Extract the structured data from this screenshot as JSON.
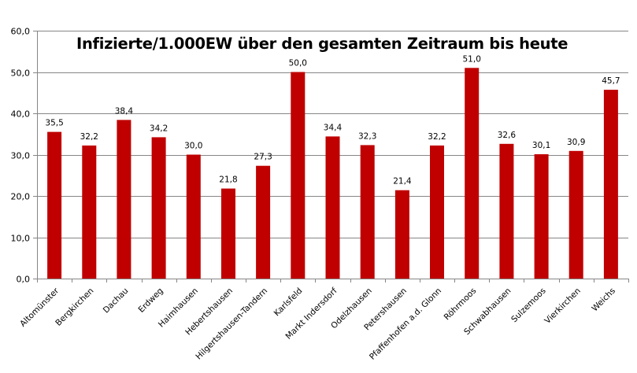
{
  "chart_data": {
    "type": "bar",
    "title": "Infizierte/1.000EW über den gesamten Zeitraum bis heute",
    "xlabel": "",
    "ylabel": "",
    "ylim": [
      0,
      60
    ],
    "yticks": [
      "0,0",
      "10,0",
      "20,0",
      "30,0",
      "40,0",
      "50,0",
      "60,0"
    ],
    "grid": true,
    "legend": "none",
    "bar_color": "#C00000",
    "categories": [
      "Altomünster",
      "Bergkirchen",
      "Dachau",
      "Erdweg",
      "Haimhausen",
      "Hebertshausen",
      "Hilgertshausen-Tandern",
      "Karlsfeld",
      "Markt Indersdorf",
      "Odelzhausen",
      "Petershausen",
      "Pfaffenhofen a.d. Glonn",
      "Röhrmoos",
      "Schwabhausen",
      "Sulzemoos",
      "Vierkirchen",
      "Weichs"
    ],
    "values": [
      35.5,
      32.2,
      38.4,
      34.2,
      30.0,
      21.8,
      27.3,
      50.0,
      34.4,
      32.3,
      21.4,
      32.2,
      51.0,
      32.6,
      30.1,
      30.9,
      45.7
    ],
    "data_labels": [
      "35,5",
      "32,2",
      "38,4",
      "34,2",
      "30,0",
      "21,8",
      "27,3",
      "50,0",
      "34,4",
      "32,3",
      "21,4",
      "32,2",
      "51,0",
      "32,6",
      "30,1",
      "30,9",
      "45,7"
    ]
  }
}
